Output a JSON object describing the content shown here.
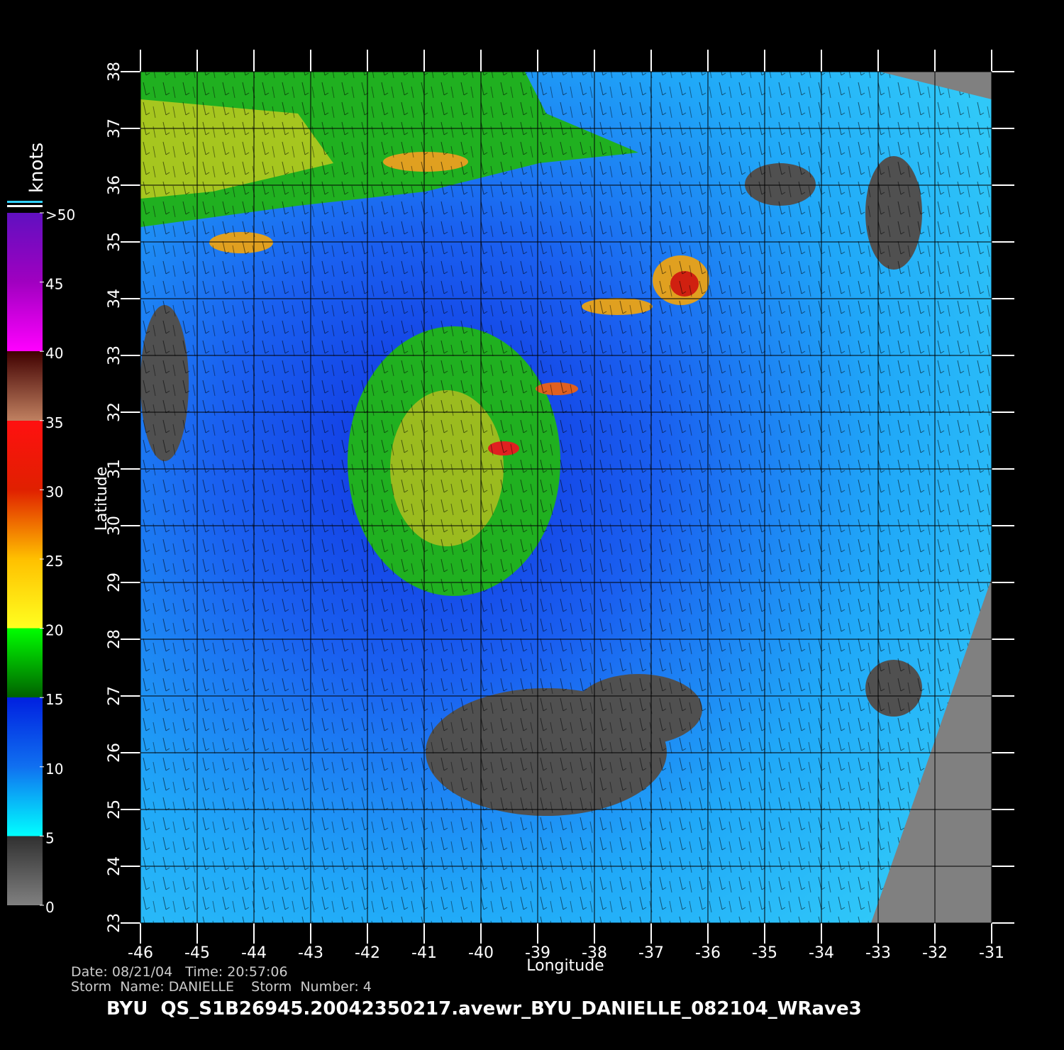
{
  "map": {
    "xlabel": "Longitude",
    "ylabel": "Latitude",
    "xlim": [
      -46,
      -31
    ],
    "ylim": [
      23,
      38
    ],
    "xticks": [
      -46,
      -45,
      -44,
      -43,
      -42,
      -41,
      -40,
      -39,
      -38,
      -37,
      -36,
      -35,
      -34,
      -33,
      -32,
      -31
    ],
    "yticks": [
      23,
      24,
      25,
      26,
      27,
      28,
      29,
      30,
      31,
      32,
      33,
      34,
      35,
      36,
      37,
      38
    ],
    "grid": true
  },
  "colorbar": {
    "title": "knots",
    "lim": [
      0,
      50
    ],
    "ticks": [
      0,
      5,
      10,
      15,
      20,
      25,
      30,
      35,
      40,
      45,
      {
        "value": 50,
        "label": ">50"
      }
    ]
  },
  "footer": {
    "date_line": "Date: 08/21/04   Time: 20:57:06",
    "storm_line": "Storm  Name: DANIELLE    Storm  Number: 4",
    "title": "BYU  QS_S1B26945.20042350217.avewr_BYU_DANIELLE_082104_WRave3"
  }
}
